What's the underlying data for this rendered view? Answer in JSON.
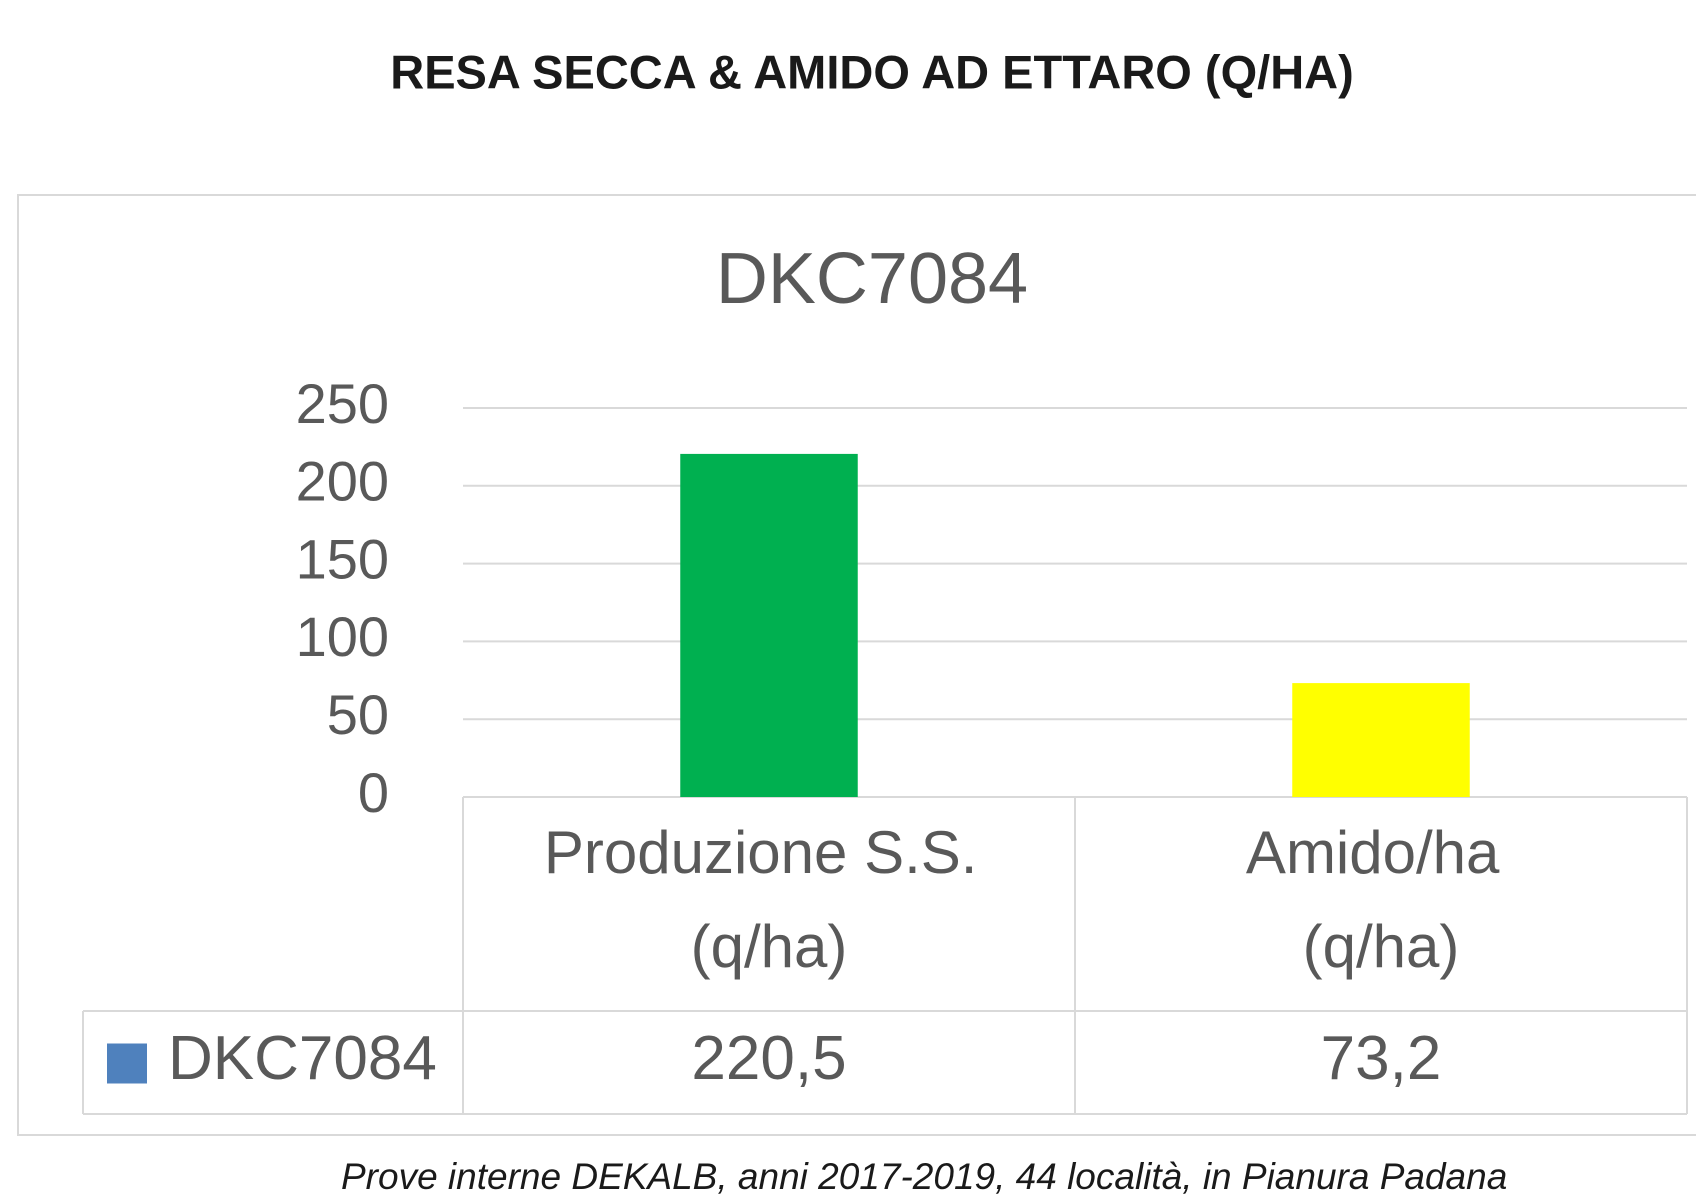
{
  "header": {
    "title": "RESA SECCA & AMIDO AD ETTARO (Q/HA)"
  },
  "chart_data": {
    "type": "bar",
    "title": "DKC7084",
    "categories": [
      "Produzione S.S. (q/ha)",
      "Amido/ha (q/ha)"
    ],
    "series": [
      {
        "name": "DKC7084",
        "color": "#4f81bd",
        "bar_colors": [
          "#00b050",
          "#ffff00"
        ],
        "values": [
          220.5,
          73.2
        ],
        "value_labels": [
          "220,5",
          "73,2"
        ]
      }
    ],
    "ylim": [
      0,
      250
    ],
    "yticks": [
      0,
      50,
      100,
      150,
      200,
      250
    ],
    "grid": true,
    "data_table": true
  },
  "footnote": "Prove interne DEKALB, anni 2017-2019, 44 località, in Pianura Padana"
}
